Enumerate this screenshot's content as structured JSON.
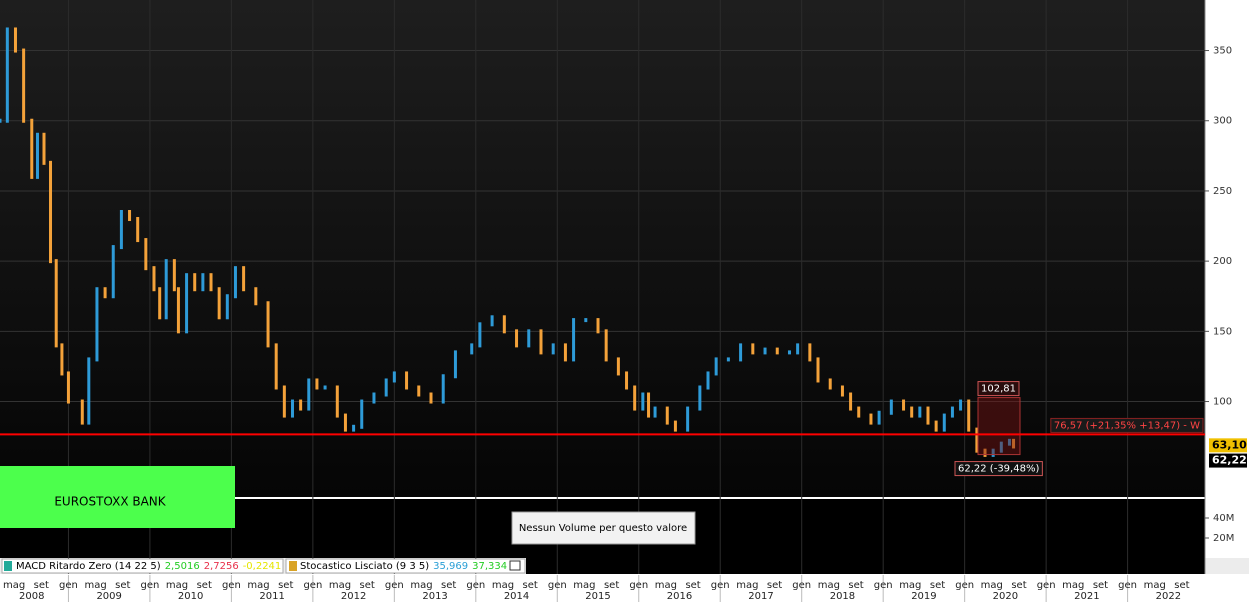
{
  "chart_data": {
    "type": "price-bars",
    "title": "EUROSTOXX BANK",
    "xlim": [
      2008.16,
      2022.95
    ],
    "ylim": [
      32,
      386
    ],
    "yticks": [
      100,
      150,
      200,
      250,
      300,
      350
    ],
    "series": [
      {
        "color_up": "#2e9bd8",
        "color_down": "#f4a23a",
        "x": [
          2008.16,
          2008.25,
          2008.35,
          2008.45,
          2008.55,
          2008.62,
          2008.7,
          2008.78,
          2008.85,
          2008.92,
          2009.0,
          2009.17,
          2009.25,
          2009.35,
          2009.45,
          2009.55,
          2009.65,
          2009.75,
          2009.85,
          2009.95,
          2010.05,
          2010.12,
          2010.2,
          2010.3,
          2010.35,
          2010.45,
          2010.55,
          2010.65,
          2010.75,
          2010.85,
          2010.95,
          2011.05,
          2011.15,
          2011.3,
          2011.45,
          2011.55,
          2011.65,
          2011.75,
          2011.85,
          2011.95,
          2012.05,
          2012.15,
          2012.3,
          2012.4,
          2012.5,
          2012.6,
          2012.75,
          2012.9,
          2013.0,
          2013.15,
          2013.3,
          2013.45,
          2013.6,
          2013.75,
          2013.95,
          2014.05,
          2014.2,
          2014.35,
          2014.5,
          2014.65,
          2014.8,
          2014.95,
          2015.1,
          2015.2,
          2015.35,
          2015.5,
          2015.6,
          2015.75,
          2015.85,
          2015.95,
          2016.05,
          2016.12,
          2016.2,
          2016.35,
          2016.45,
          2016.6,
          2016.75,
          2016.85,
          2016.95,
          2017.1,
          2017.25,
          2017.4,
          2017.55,
          2017.7,
          2017.85,
          2017.95,
          2018.1,
          2018.2,
          2018.35,
          2018.5,
          2018.6,
          2018.7,
          2018.85,
          2018.95,
          2019.1,
          2019.25,
          2019.35,
          2019.45,
          2019.55,
          2019.65,
          2019.75,
          2019.85,
          2019.95,
          2020.05,
          2020.15,
          2020.25,
          2020.35,
          2020.45,
          2020.55,
          2020.6
        ],
        "values": [
          300,
          365,
          350,
          300,
          260,
          290,
          270,
          200,
          140,
          120,
          100,
          85,
          130,
          180,
          175,
          210,
          235,
          230,
          215,
          195,
          180,
          160,
          200,
          180,
          150,
          190,
          180,
          190,
          180,
          160,
          175,
          195,
          180,
          170,
          140,
          110,
          90,
          100,
          95,
          115,
          110,
          110,
          90,
          80,
          82,
          100,
          105,
          115,
          120,
          110,
          105,
          100,
          118,
          135,
          140,
          155,
          160,
          150,
          140,
          150,
          135,
          140,
          130,
          158,
          158,
          150,
          130,
          120,
          110,
          95,
          105,
          90,
          95,
          85,
          80,
          95,
          110,
          120,
          130,
          130,
          140,
          135,
          137,
          135,
          135,
          140,
          130,
          115,
          110,
          105,
          95,
          90,
          85,
          92,
          100,
          95,
          90,
          95,
          85,
          80,
          90,
          95,
          100,
          80,
          65,
          62,
          65,
          70,
          72,
          68
        ]
      }
    ],
    "annotations": {
      "level": {
        "value": 76.57,
        "label": "76,57 (+21,35% +13,47) - W"
      },
      "high": {
        "value": 102.81,
        "label": "102,81"
      },
      "low": {
        "value": 62.22,
        "label": "62,22 (-39,48%)"
      },
      "last": {
        "value": 63.1,
        "label": "63,10"
      },
      "close": {
        "value": 62.22,
        "label": "62,22"
      }
    },
    "volume": {
      "message": "Nessun Volume per questo valore",
      "ylim": [
        0,
        59000000
      ],
      "yticks": [
        {
          "value": 40000000,
          "label": "40M"
        },
        {
          "value": 20000000,
          "label": "20M"
        }
      ]
    },
    "indicators": [
      {
        "name": "MACD Ritardo Zero (14 22 5)",
        "values": [
          {
            "value": 2.5016,
            "label": "2,5016",
            "color": "#22cc22"
          },
          {
            "value": 2.7256,
            "label": "2,7256",
            "color": "#e8304a"
          },
          {
            "value": -0.2241,
            "label": "-0,2241",
            "color": "#e6e600"
          }
        ]
      },
      {
        "name": "Stocastico Lisciato (9 3 5)",
        "values": [
          {
            "value": 35.969,
            "label": "35,969",
            "color": "#2a9fd6"
          },
          {
            "value": 37.334,
            "label": "37,334",
            "color": "#22cc22"
          }
        ]
      }
    ],
    "xticks": [
      {
        "value": 2008.333,
        "label": "mag"
      },
      {
        "value": 2008.667,
        "label": "set"
      },
      {
        "value": 2009.0,
        "label": "gen"
      },
      {
        "value": 2009.333,
        "label": "mag"
      },
      {
        "value": 2009.667,
        "label": "set"
      },
      {
        "value": 2010.0,
        "label": "gen"
      },
      {
        "value": 2010.333,
        "label": "mag"
      },
      {
        "value": 2010.667,
        "label": "set"
      },
      {
        "value": 2011.0,
        "label": "gen"
      },
      {
        "value": 2011.333,
        "label": "mag"
      },
      {
        "value": 2011.667,
        "label": "set"
      },
      {
        "value": 2012.0,
        "label": "gen"
      },
      {
        "value": 2012.333,
        "label": "mag"
      },
      {
        "value": 2012.667,
        "label": "set"
      },
      {
        "value": 2013.0,
        "label": "gen"
      },
      {
        "value": 2013.333,
        "label": "mag"
      },
      {
        "value": 2013.667,
        "label": "set"
      },
      {
        "value": 2014.0,
        "label": "gen"
      },
      {
        "value": 2014.333,
        "label": "mag"
      },
      {
        "value": 2014.667,
        "label": "set"
      },
      {
        "value": 2015.0,
        "label": "gen"
      },
      {
        "value": 2015.333,
        "label": "mag"
      },
      {
        "value": 2015.667,
        "label": "set"
      },
      {
        "value": 2016.0,
        "label": "gen"
      },
      {
        "value": 2016.333,
        "label": "mag"
      },
      {
        "value": 2016.667,
        "label": "set"
      },
      {
        "value": 2017.0,
        "label": "gen"
      },
      {
        "value": 2017.333,
        "label": "mag"
      },
      {
        "value": 2017.667,
        "label": "set"
      },
      {
        "value": 2018.0,
        "label": "gen"
      },
      {
        "value": 2018.333,
        "label": "mag"
      },
      {
        "value": 2018.667,
        "label": "set"
      },
      {
        "value": 2019.0,
        "label": "gen"
      },
      {
        "value": 2019.333,
        "label": "mag"
      },
      {
        "value": 2019.667,
        "label": "set"
      },
      {
        "value": 2020.0,
        "label": "gen"
      },
      {
        "value": 2020.333,
        "label": "mag"
      },
      {
        "value": 2020.667,
        "label": "set"
      },
      {
        "value": 2021.0,
        "label": "gen"
      },
      {
        "value": 2021.333,
        "label": "mag"
      },
      {
        "value": 2021.667,
        "label": "set"
      },
      {
        "value": 2022.0,
        "label": "gen"
      },
      {
        "value": 2022.333,
        "label": "mag"
      },
      {
        "value": 2022.667,
        "label": "set"
      }
    ],
    "years": [
      {
        "value": 2008.55,
        "label": "2008"
      },
      {
        "value": 2009.5,
        "label": "2009"
      },
      {
        "value": 2010.5,
        "label": "2010"
      },
      {
        "value": 2011.5,
        "label": "2011"
      },
      {
        "value": 2012.5,
        "label": "2012"
      },
      {
        "value": 2013.5,
        "label": "2013"
      },
      {
        "value": 2014.5,
        "label": "2014"
      },
      {
        "value": 2015.5,
        "label": "2015"
      },
      {
        "value": 2016.5,
        "label": "2016"
      },
      {
        "value": 2017.5,
        "label": "2017"
      },
      {
        "value": 2018.5,
        "label": "2018"
      },
      {
        "value": 2019.5,
        "label": "2019"
      },
      {
        "value": 2020.5,
        "label": "2020"
      },
      {
        "value": 2021.5,
        "label": "2021"
      },
      {
        "value": 2022.5,
        "label": "2022"
      }
    ]
  }
}
